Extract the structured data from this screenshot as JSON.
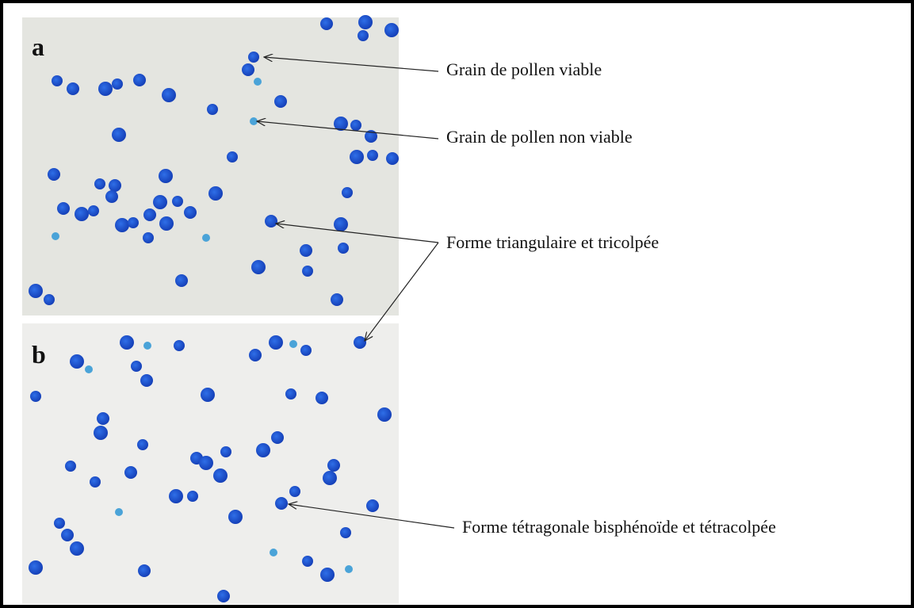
{
  "panels": [
    {
      "label": "a"
    },
    {
      "label": "b"
    }
  ],
  "annotations": [
    {
      "text": "Grain de pollen viable"
    },
    {
      "text": "Grain de pollen non viable"
    },
    {
      "text": "Forme triangulaire et tricolpée"
    },
    {
      "text": "Forme tétragonale bisphénoïde et tétracolpée"
    }
  ]
}
